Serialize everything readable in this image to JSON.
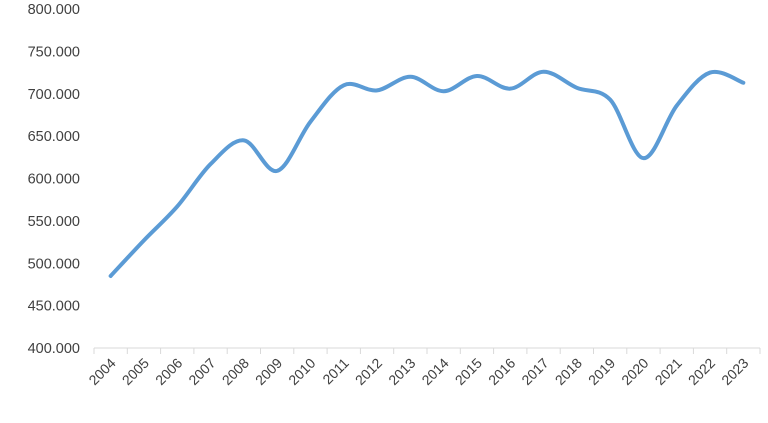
{
  "chart_data": {
    "type": "line",
    "title": "",
    "xlabel": "",
    "ylabel": "",
    "x": [
      "2004",
      "2005",
      "2006",
      "2007",
      "2008",
      "2009",
      "2010",
      "2011",
      "2012",
      "2013",
      "2014",
      "2015",
      "2016",
      "2017",
      "2018",
      "2019",
      "2020",
      "2021",
      "2022",
      "2023"
    ],
    "series": [
      {
        "values": [
          485000,
          527000,
          567000,
          617000,
          645000,
          609000,
          667000,
          710000,
          704000,
          720000,
          703000,
          721000,
          706000,
          726000,
          707000,
          693000,
          624000,
          686000,
          725000,
          713000
        ]
      }
    ],
    "ylim": [
      400000,
      800000
    ],
    "y_ticks": [
      400000,
      450000,
      500000,
      550000,
      600000,
      650000,
      700000,
      750000,
      800000
    ],
    "y_tick_labels": [
      "400.000",
      "450.000",
      "500.000",
      "550.000",
      "600.000",
      "650.000",
      "700.000",
      "750.000",
      "800.000"
    ],
    "grid": false,
    "legend": "none",
    "line_color": "#5b9bd5",
    "axis_color": "#d9d9d9"
  }
}
